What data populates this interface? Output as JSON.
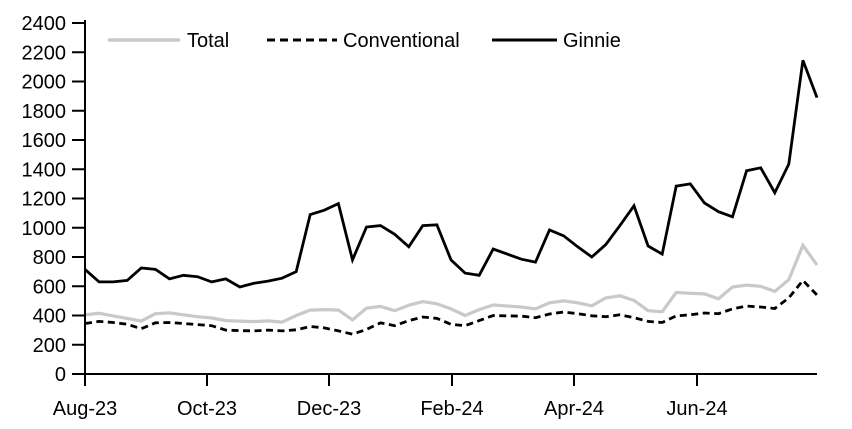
{
  "chart_data": {
    "type": "line",
    "title": "",
    "grid": false,
    "legend_position": "top",
    "x_axis": {
      "tick_labels": [
        "Aug-23",
        "Oct-23",
        "Dec-23",
        "Feb-24",
        "Apr-24",
        "Jun-24"
      ],
      "frequency": "weekly"
    },
    "y_axis": {
      "ticks": [
        0,
        200,
        400,
        600,
        800,
        1000,
        1200,
        1400,
        1600,
        1800,
        2000,
        2200,
        2400
      ],
      "range": [
        0,
        2400
      ]
    },
    "series": [
      {
        "name": "Total",
        "color": "#c9c9c9",
        "line_style": "solid",
        "values": [
          405,
          415,
          397,
          380,
          362,
          412,
          418,
          405,
          392,
          383,
          365,
          362,
          358,
          363,
          355,
          400,
          437,
          440,
          437,
          370,
          450,
          462,
          433,
          470,
          495,
          480,
          445,
          400,
          440,
          472,
          465,
          458,
          445,
          487,
          500,
          487,
          466,
          520,
          535,
          503,
          433,
          426,
          558,
          552,
          548,
          514,
          595,
          608,
          600,
          565,
          645,
          880,
          745
        ]
      },
      {
        "name": "Conventional",
        "color": "#000000",
        "line_style": "dashed",
        "values": [
          345,
          360,
          352,
          340,
          310,
          350,
          352,
          345,
          338,
          330,
          300,
          297,
          295,
          300,
          295,
          302,
          325,
          315,
          295,
          272,
          305,
          350,
          330,
          365,
          390,
          380,
          340,
          330,
          365,
          400,
          397,
          396,
          385,
          410,
          424,
          412,
          398,
          392,
          405,
          385,
          360,
          352,
          397,
          405,
          417,
          412,
          445,
          464,
          458,
          448,
          520,
          640,
          540
        ]
      },
      {
        "name": "Ginnie",
        "color": "#000000",
        "line_style": "solid",
        "values": [
          715,
          630,
          630,
          640,
          725,
          715,
          650,
          675,
          665,
          630,
          650,
          595,
          620,
          635,
          655,
          700,
          1090,
          1120,
          1165,
          780,
          1005,
          1015,
          955,
          870,
          1015,
          1020,
          780,
          690,
          675,
          855,
          820,
          785,
          765,
          985,
          945,
          870,
          800,
          885,
          1015,
          1150,
          875,
          820,
          1285,
          1300,
          1170,
          1110,
          1075,
          1390,
          1410,
          1240,
          1435,
          2145,
          1890
        ]
      }
    ]
  }
}
